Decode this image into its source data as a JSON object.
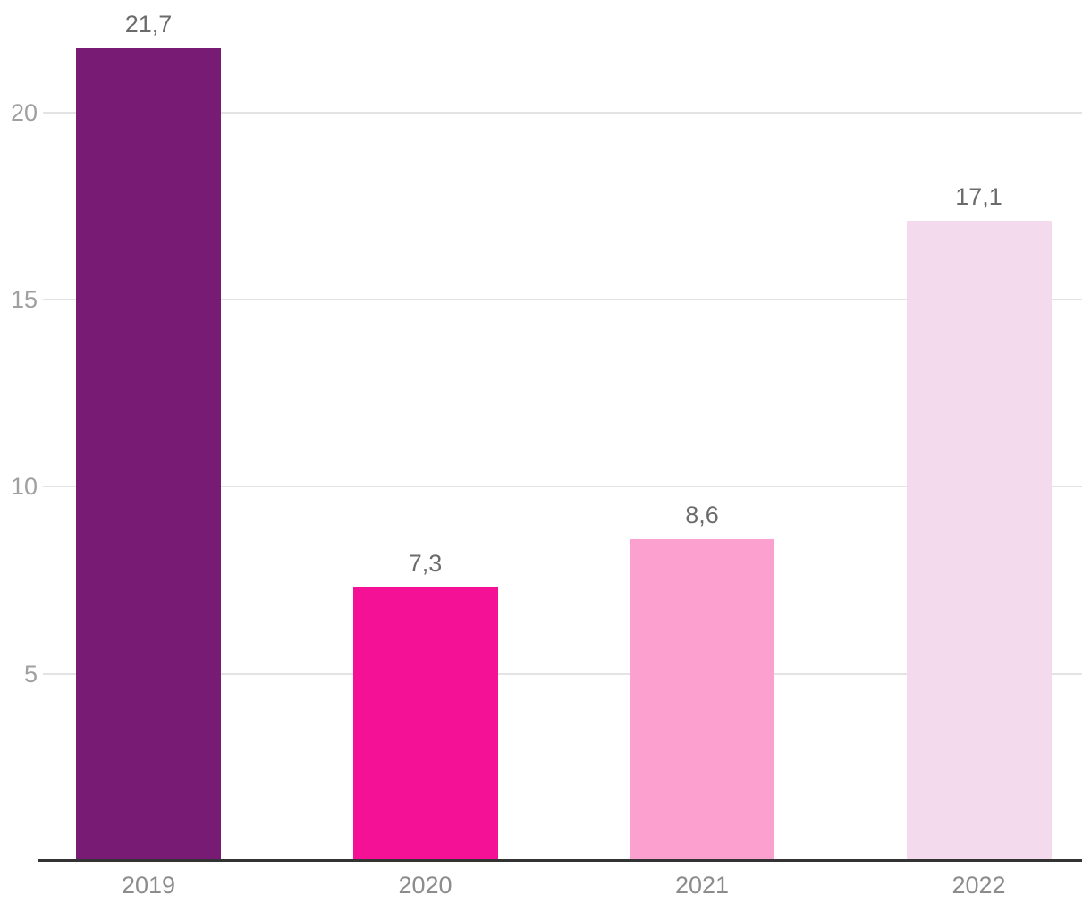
{
  "chart_data": {
    "type": "bar",
    "categories": [
      "2019",
      "2020",
      "2021",
      "2022"
    ],
    "values": [
      21.7,
      7.3,
      8.6,
      17.1
    ],
    "value_labels": [
      "21,7",
      "7,3",
      "8,6",
      "17,1"
    ],
    "bar_colors": [
      "#781B74",
      "#F41195",
      "#FCA0D0",
      "#F3DAEC"
    ],
    "title": "",
    "xlabel": "",
    "ylabel": "",
    "ylim": [
      0,
      23
    ],
    "yticks": [
      5,
      10,
      15,
      20
    ],
    "ytick_labels": [
      "5",
      "10",
      "15",
      "20"
    ],
    "grid": true,
    "legend": false,
    "decimal_separator": ","
  },
  "style": {
    "background_color": "#ffffff",
    "grid_color": "#e3e3e3",
    "axis_line_color": "#333333",
    "ytick_label_color": "#a0a0a0",
    "xtick_label_color": "#8c8c8c",
    "value_label_color": "#6b6b6b"
  }
}
